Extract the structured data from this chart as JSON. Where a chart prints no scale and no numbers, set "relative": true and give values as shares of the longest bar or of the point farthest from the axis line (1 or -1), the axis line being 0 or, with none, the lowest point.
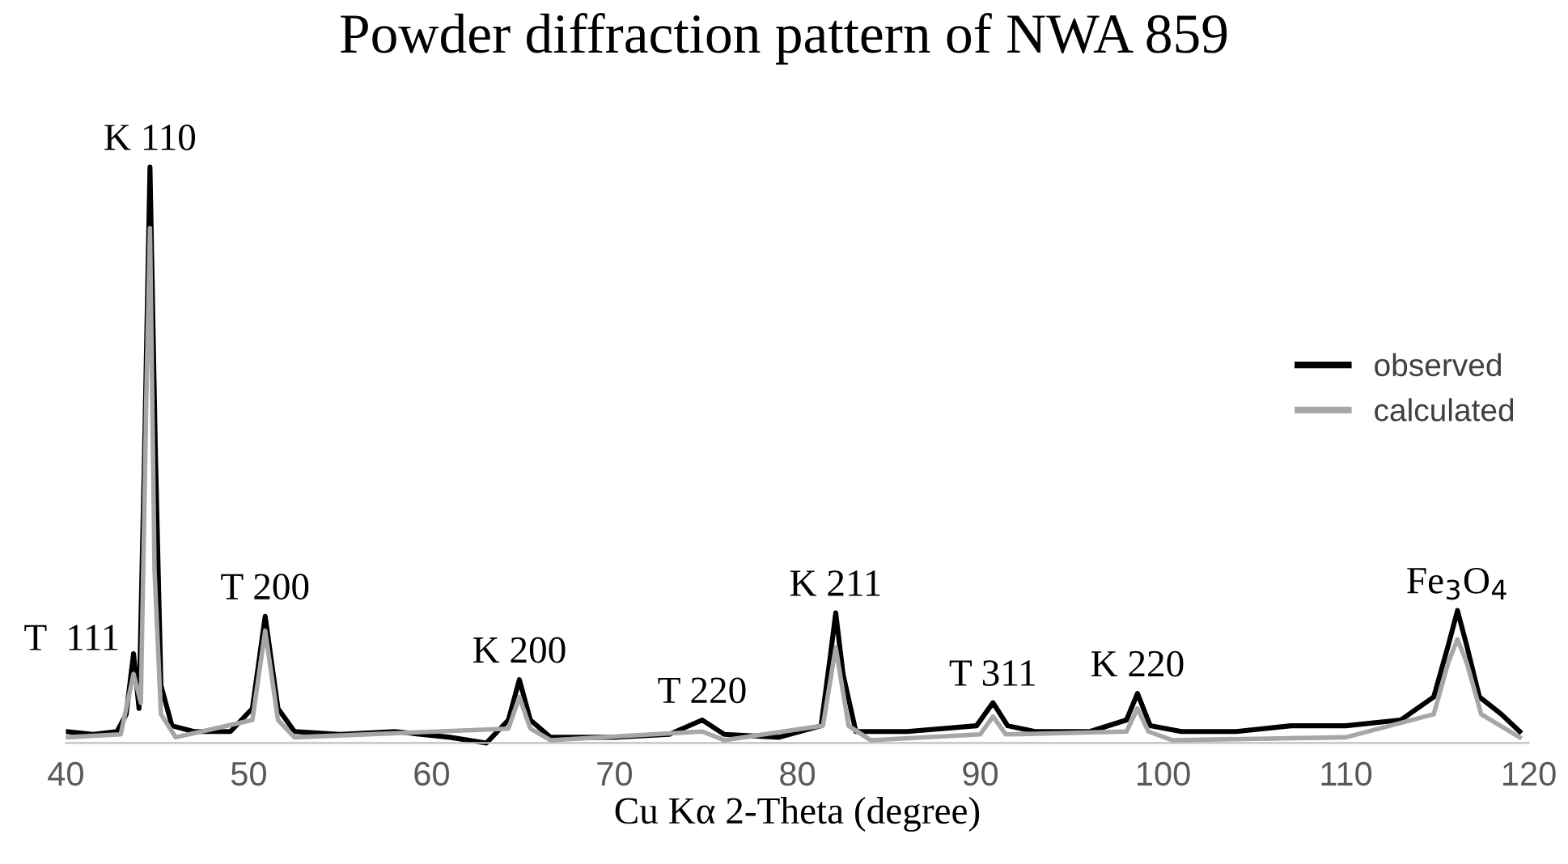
{
  "chart_data": {
    "type": "line",
    "title": "Powder diffraction pattern of NWA 859",
    "xlabel": "Cu Kα 2-Theta (degree)",
    "relative": true,
    "xlim": [
      40,
      120
    ],
    "xticks": [
      40,
      50,
      60,
      70,
      80,
      90,
      100,
      110,
      120
    ],
    "grid": false,
    "legend": "top right",
    "marker": "none",
    "line_style": "solid",
    "series": [
      {
        "name": "observed",
        "color": "#000000",
        "x": [
          40,
          41.5,
          42.8,
          43.3,
          43.7,
          44.0,
          44.3,
          44.6,
          44.9,
          45.2,
          45.8,
          47,
          49,
          50.2,
          50.9,
          51.6,
          52.5,
          55,
          58,
          61,
          63,
          64.2,
          64.8,
          65.4,
          66.5,
          70,
          73,
          74.8,
          76,
          79,
          81.3,
          81.8,
          82.1,
          82.5,
          83.2,
          86,
          89.8,
          90.7,
          91.5,
          93,
          96,
          98.0,
          98.6,
          99.3,
          101,
          104,
          107,
          110,
          113,
          114.8,
          115.6,
          116.1,
          116.6,
          117.3,
          118.5,
          119.5
        ],
        "values": [
          0.02,
          0.015,
          0.02,
          0.05,
          0.155,
          0.06,
          0.5,
          1.0,
          0.5,
          0.1,
          0.03,
          0.02,
          0.02,
          0.06,
          0.22,
          0.06,
          0.02,
          0.015,
          0.02,
          0.01,
          0.0,
          0.04,
          0.11,
          0.04,
          0.01,
          0.01,
          0.015,
          0.04,
          0.015,
          0.01,
          0.03,
          0.15,
          0.226,
          0.12,
          0.02,
          0.02,
          0.03,
          0.07,
          0.03,
          0.02,
          0.02,
          0.04,
          0.086,
          0.03,
          0.02,
          0.02,
          0.03,
          0.03,
          0.04,
          0.08,
          0.17,
          0.23,
          0.17,
          0.08,
          0.05,
          0.02
        ]
      },
      {
        "name": "calculated",
        "color": "#a6a6a6",
        "x": [
          40,
          43.0,
          43.7,
          44.1,
          44.4,
          44.6,
          44.85,
          45.2,
          46,
          50.2,
          50.9,
          51.6,
          52.5,
          64.2,
          64.8,
          65.4,
          66.5,
          74.8,
          76,
          81.4,
          82.1,
          82.8,
          84,
          90.0,
          90.7,
          91.4,
          98.0,
          98.6,
          99.2,
          100.5,
          110,
          114.8,
          115.6,
          116.1,
          116.6,
          117.4,
          119.5
        ],
        "values": [
          0.01,
          0.015,
          0.12,
          0.07,
          0.6,
          0.894,
          0.3,
          0.05,
          0.01,
          0.04,
          0.195,
          0.04,
          0.01,
          0.025,
          0.08,
          0.025,
          0.005,
          0.02,
          0.005,
          0.03,
          0.166,
          0.03,
          0.005,
          0.015,
          0.046,
          0.015,
          0.02,
          0.06,
          0.02,
          0.005,
          0.01,
          0.05,
          0.14,
          0.18,
          0.14,
          0.05,
          0.01
        ]
      }
    ],
    "annotations": [
      {
        "text": "T  111",
        "x": 43.7,
        "y": 0.155
      },
      {
        "text": "K 110",
        "x": 44.6,
        "y": 1.0
      },
      {
        "text": "T 200",
        "x": 50.9,
        "y": 0.22
      },
      {
        "text": "K 200",
        "x": 64.8,
        "y": 0.11
      },
      {
        "text": "T 220",
        "x": 74.8,
        "y": 0.04
      },
      {
        "text": "K 211",
        "x": 82.1,
        "y": 0.226
      },
      {
        "text": "T 311",
        "x": 90.7,
        "y": 0.07
      },
      {
        "text": "K 220",
        "x": 98.6,
        "y": 0.086
      },
      {
        "text": "Fe$_{3}$O$_{4}$",
        "x": 116.1,
        "y": 0.23
      }
    ]
  }
}
